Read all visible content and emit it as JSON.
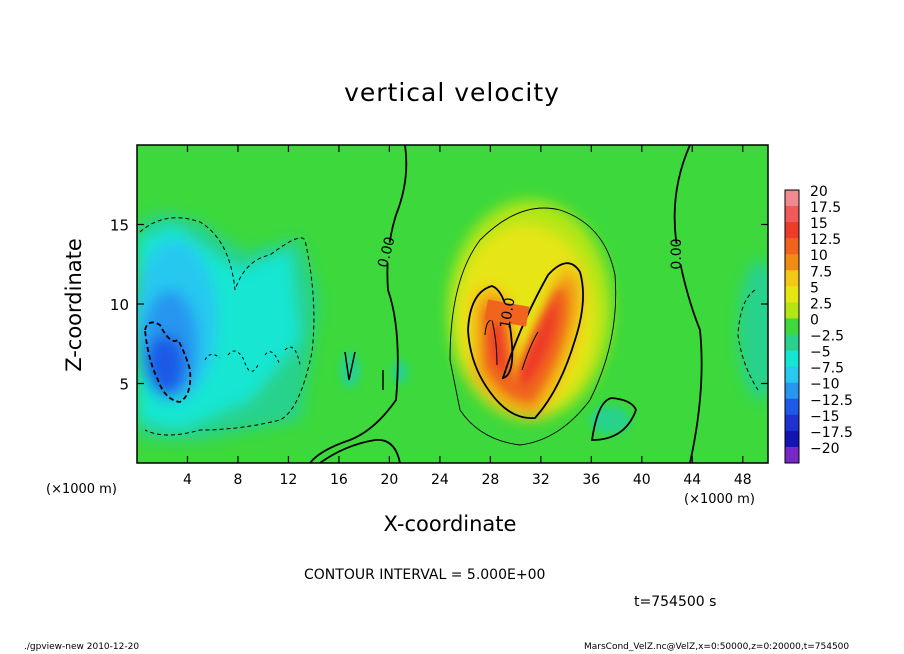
{
  "chart_data": {
    "type": "heatmap",
    "title": "vertical velocity",
    "xlabel": "X-coordinate",
    "ylabel": "Z-coordinate",
    "x_unit_label": "(×1000 m)",
    "xlim": [
      0,
      50
    ],
    "ylim": [
      0,
      20
    ],
    "x_ticks": [
      4,
      8,
      12,
      16,
      20,
      24,
      28,
      32,
      36,
      40,
      44,
      48
    ],
    "y_ticks": [
      5,
      10,
      15
    ],
    "colorbar": {
      "levels": [
        20,
        17.5,
        15,
        12.5,
        10,
        7.5,
        5,
        2.5,
        0,
        -2.5,
        -5,
        -7.5,
        -10,
        -12.5,
        -15,
        -17.5,
        -20
      ],
      "labels": [
        "20",
        "17.5",
        "15",
        "12.5",
        "10",
        "7.5",
        "5",
        "2.5",
        "0",
        "−2.5",
        "−5",
        "−7.5",
        "−10",
        "−12.5",
        "−15",
        "−17.5",
        "−20"
      ],
      "colors": [
        "#f08a90",
        "#f05a5a",
        "#ee3c28",
        "#f0641e",
        "#f08c14",
        "#f4c814",
        "#e6e614",
        "#b4e614",
        "#3cd83c",
        "#28d28c",
        "#14e6d2",
        "#28c8f0",
        "#2896f0",
        "#1e5ae6",
        "#1e32d2",
        "#1414b4",
        "#7828c8"
      ]
    },
    "contour_labels": [
      {
        "text": "0.00",
        "x": 19.2,
        "z": 13.3
      },
      {
        "text": "0.00",
        "x": 42.5,
        "z": 13.0
      },
      {
        "text": "10.0",
        "x": 28.6,
        "z": 10.0
      }
    ],
    "contour_interval_text": "CONTOUR INTERVAL = 5.000E+00",
    "time_text": "t=754500 s"
  },
  "footer": {
    "left": "./gpview-new  2010-12-20",
    "right": "MarsCond_VelZ.nc@VelZ,x=0:50000,z=0:20000,t=754500"
  }
}
